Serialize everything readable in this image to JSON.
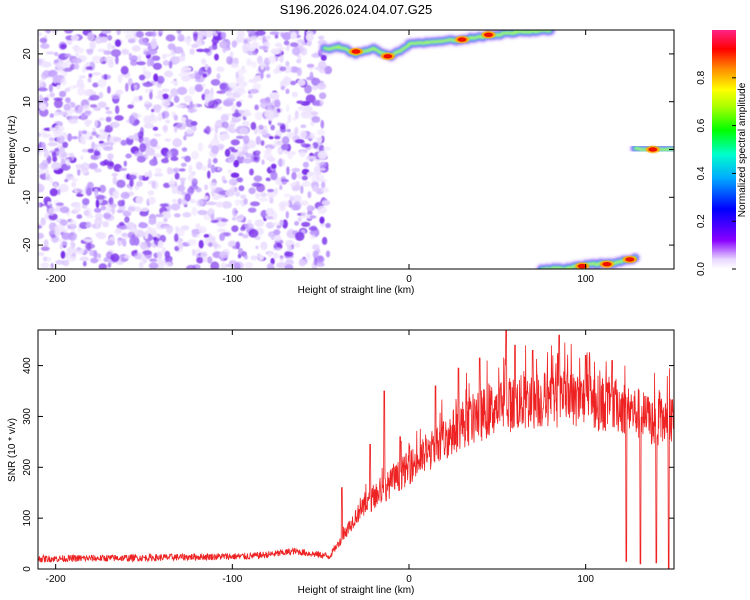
{
  "title": "S196.2026.024.04.07.G25",
  "chart_data": [
    {
      "type": "heatmap",
      "xlabel": "Height of straight line (km)",
      "ylabel": "Frequency (Hz)",
      "xlim": [
        -210,
        150
      ],
      "ylim": [
        -25,
        25
      ],
      "xticks": [
        -200,
        -100,
        0,
        100
      ],
      "yticks": [
        -20,
        -10,
        0,
        10,
        20
      ],
      "noise_region_x": [
        -210,
        -48
      ],
      "tracks": [
        {
          "points": [
            [
              -48,
              21
            ],
            [
              -40,
              21.5
            ],
            [
              -30,
              20
            ],
            [
              -20,
              21
            ],
            [
              -10,
              19.5
            ],
            [
              0,
              22
            ],
            [
              10,
              22.5
            ],
            [
              30,
              23
            ],
            [
              60,
              24.5
            ],
            [
              80,
              25
            ]
          ]
        },
        {
          "points": [
            [
              75,
              -25
            ],
            [
              90,
              -24.8
            ],
            [
              105,
              -24
            ],
            [
              115,
              -23.8
            ],
            [
              128,
              -22.8
            ]
          ]
        },
        {
          "points": [
            [
              128,
              0
            ],
            [
              138,
              0.2
            ],
            [
              150,
              0
            ]
          ]
        }
      ],
      "peaks": [
        [
          -30,
          20.5
        ],
        [
          -12,
          19.5
        ],
        [
          30,
          23
        ],
        [
          45,
          24
        ],
        [
          98,
          -24.4
        ],
        [
          112,
          -24
        ],
        [
          125,
          -23
        ],
        [
          138,
          0
        ]
      ],
      "colorbar": {
        "label": "Normalized spectral amplitude",
        "range": [
          0,
          1
        ],
        "ticks": [
          0.0,
          0.2,
          0.4,
          0.6,
          0.8
        ],
        "tick_labels": [
          "0.0",
          "0.2",
          "0.4",
          "0.6",
          "0.8"
        ]
      }
    },
    {
      "type": "line",
      "xlabel": "Height of straight line (km)",
      "ylabel": "SNR (10 * v/v)",
      "xlim": [
        -210,
        150
      ],
      "ylim": [
        0,
        470
      ],
      "xticks": [
        -200,
        -100,
        0,
        100
      ],
      "yticks": [
        0,
        100,
        200,
        300,
        400
      ],
      "color": "#ee2222",
      "series": [
        {
          "x": [
            -210,
            -180,
            -150,
            -120,
            -90,
            -75,
            -65,
            -55,
            -45,
            -38,
            -30,
            -20,
            -10,
            0,
            10,
            20,
            30,
            40,
            50,
            60,
            70,
            80,
            90,
            100,
            110,
            120,
            130,
            140,
            150
          ],
          "values": [
            20,
            21,
            22,
            24,
            25,
            30,
            35,
            30,
            25,
            60,
            105,
            140,
            170,
            200,
            225,
            255,
            285,
            300,
            320,
            325,
            330,
            333,
            335,
            330,
            325,
            320,
            305,
            285,
            295
          ]
        }
      ],
      "spikes": [
        [
          -38,
          160
        ],
        [
          -22,
          245
        ],
        [
          -14,
          350
        ],
        [
          -5,
          260
        ],
        [
          15,
          360
        ],
        [
          28,
          395
        ],
        [
          40,
          415
        ],
        [
          55,
          470
        ],
        [
          60,
          440
        ],
        [
          70,
          430
        ],
        [
          85,
          460
        ],
        [
          100,
          420
        ],
        [
          115,
          410
        ],
        [
          123,
          15
        ],
        [
          131,
          10
        ],
        [
          140,
          12
        ],
        [
          147,
          0
        ]
      ]
    }
  ]
}
